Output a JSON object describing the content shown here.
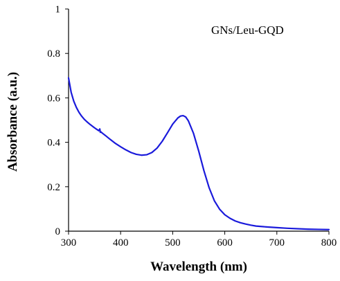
{
  "chart_data": {
    "type": "line",
    "title": "",
    "annotation": "GNs/Leu-GQD",
    "xlabel": "Wavelength (nm)",
    "ylabel": "Absorbance (a.u.)",
    "xlim": [
      300,
      800
    ],
    "ylim": [
      0,
      1
    ],
    "x_ticks": [
      300,
      400,
      500,
      600,
      700,
      800
    ],
    "y_ticks": [
      0,
      0.2,
      0.4,
      0.6,
      0.8,
      1
    ],
    "x_tick_labels": [
      "300",
      "400",
      "500",
      "600",
      "700",
      "800"
    ],
    "y_tick_labels": [
      "0",
      "0.2",
      "0.4",
      "0.6",
      "0.8",
      "1"
    ],
    "grid": false,
    "legend": "none",
    "series": [
      {
        "color": "#1a1adb",
        "points": [
          [
            300,
            0.69
          ],
          [
            305,
            0.625
          ],
          [
            310,
            0.585
          ],
          [
            315,
            0.557
          ],
          [
            320,
            0.535
          ],
          [
            325,
            0.518
          ],
          [
            330,
            0.504
          ],
          [
            335,
            0.493
          ],
          [
            340,
            0.483
          ],
          [
            345,
            0.474
          ],
          [
            350,
            0.465
          ],
          [
            355,
            0.457
          ],
          [
            358,
            0.452
          ],
          [
            360,
            0.46
          ],
          [
            361,
            0.445
          ],
          [
            362,
            0.447
          ],
          [
            365,
            0.441
          ],
          [
            370,
            0.432
          ],
          [
            380,
            0.413
          ],
          [
            390,
            0.395
          ],
          [
            400,
            0.38
          ],
          [
            410,
            0.366
          ],
          [
            420,
            0.354
          ],
          [
            430,
            0.346
          ],
          [
            440,
            0.342
          ],
          [
            450,
            0.344
          ],
          [
            460,
            0.354
          ],
          [
            470,
            0.374
          ],
          [
            480,
            0.405
          ],
          [
            490,
            0.443
          ],
          [
            500,
            0.482
          ],
          [
            510,
            0.51
          ],
          [
            515,
            0.518
          ],
          [
            520,
            0.52
          ],
          [
            525,
            0.514
          ],
          [
            530,
            0.497
          ],
          [
            540,
            0.44
          ],
          [
            550,
            0.36
          ],
          [
            560,
            0.272
          ],
          [
            570,
            0.195
          ],
          [
            580,
            0.137
          ],
          [
            590,
            0.099
          ],
          [
            600,
            0.074
          ],
          [
            610,
            0.058
          ],
          [
            620,
            0.046
          ],
          [
            630,
            0.038
          ],
          [
            640,
            0.032
          ],
          [
            650,
            0.027
          ],
          [
            660,
            0.023
          ],
          [
            680,
            0.019
          ],
          [
            700,
            0.016
          ],
          [
            720,
            0.013
          ],
          [
            740,
            0.011
          ],
          [
            760,
            0.009
          ],
          [
            780,
            0.008
          ],
          [
            800,
            0.007
          ]
        ]
      }
    ]
  }
}
